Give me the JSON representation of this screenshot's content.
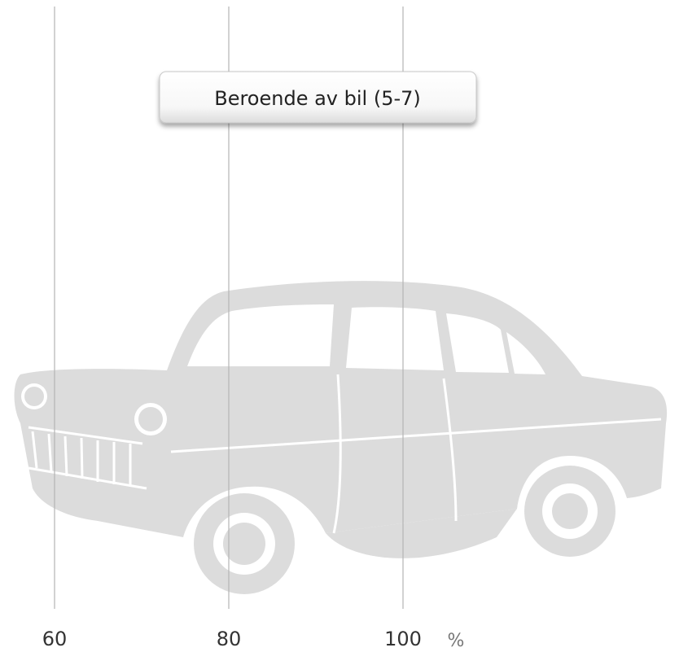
{
  "chart_data": {
    "type": "bar",
    "title": "Beroende av bil (5-7)",
    "xlabel": "%",
    "xlim": [
      60,
      100
    ],
    "xticks": [
      60,
      80,
      100
    ],
    "grid": true,
    "grid_color": "#b4b4b4"
  }
}
